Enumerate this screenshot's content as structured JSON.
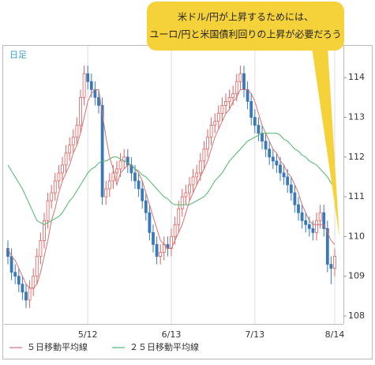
{
  "chart_data": {
    "type": "candlestick",
    "corner_label": "日足",
    "annotation": [
      "米ドル/円が上昇するためには、",
      "ユーロ/円と米国債利回りの上昇が必要だろう"
    ],
    "categories": [
      null,
      null,
      null,
      null,
      null,
      null,
      null,
      null,
      null,
      null,
      null,
      null,
      null,
      null,
      null,
      null,
      null,
      null,
      null,
      null,
      null,
      null,
      "5/12",
      null,
      null,
      null,
      null,
      null,
      null,
      null,
      null,
      null,
      null,
      null,
      null,
      null,
      null,
      null,
      null,
      null,
      null,
      null,
      null,
      null,
      null,
      "6/13",
      null,
      null,
      null,
      null,
      null,
      null,
      null,
      null,
      null,
      null,
      null,
      null,
      null,
      null,
      null,
      null,
      null,
      null,
      null,
      null,
      null,
      null,
      "7/13",
      null,
      null,
      null,
      null,
      null,
      null,
      null,
      null,
      null,
      null,
      null,
      null,
      null,
      null,
      null,
      null,
      null,
      null,
      null,
      null,
      null,
      "8/14"
    ],
    "open": [
      109.7,
      109.5,
      109.1,
      109.0,
      108.8,
      108.6,
      108.4,
      108.7,
      109.0,
      109.5,
      109.9,
      110.4,
      110.9,
      111.1,
      111.4,
      111.6,
      111.8,
      112.1,
      112.3,
      112.5,
      112.8,
      113.5,
      114.1,
      113.9,
      113.7,
      113.5,
      113.3,
      111.0,
      111.2,
      111.4,
      111.6,
      111.7,
      111.9,
      112.0,
      111.8,
      111.6,
      111.4,
      111.2,
      110.9,
      110.6,
      110.1,
      109.8,
      109.5,
      109.6,
      109.8,
      109.7,
      110.0,
      110.3,
      110.7,
      111.0,
      111.1,
      111.3,
      111.5,
      111.6,
      111.9,
      112.2,
      112.5,
      112.8,
      112.9,
      113.1,
      113.3,
      113.4,
      113.5,
      113.6,
      113.9,
      114.1,
      113.7,
      113.4,
      113.0,
      112.8,
      112.6,
      112.4,
      112.2,
      112.0,
      111.9,
      111.8,
      111.6,
      111.5,
      111.3,
      111.1,
      110.8,
      110.6,
      110.4,
      110.3,
      110.2,
      110.1,
      110.4,
      110.6,
      110.2,
      109.3,
      109.2
    ],
    "high": [
      109.9,
      109.7,
      109.3,
      109.2,
      109.0,
      108.8,
      108.9,
      109.2,
      109.7,
      110.1,
      110.6,
      111.1,
      111.3,
      111.6,
      111.8,
      112.0,
      112.3,
      112.5,
      112.7,
      113.0,
      113.7,
      114.3,
      114.3,
      114.1,
      113.9,
      113.7,
      113.5,
      111.4,
      111.6,
      111.8,
      111.9,
      112.1,
      112.2,
      112.2,
      112.0,
      111.8,
      111.6,
      111.4,
      111.1,
      110.8,
      110.3,
      110.0,
      109.8,
      110.0,
      110.0,
      110.2,
      110.5,
      110.9,
      111.2,
      111.3,
      111.5,
      111.7,
      111.8,
      112.1,
      112.4,
      112.7,
      113.0,
      113.1,
      113.3,
      113.5,
      113.6,
      113.7,
      113.8,
      114.1,
      114.3,
      114.3,
      113.9,
      113.6,
      113.2,
      113.0,
      112.8,
      112.6,
      112.4,
      112.2,
      112.1,
      112.0,
      111.8,
      111.7,
      111.5,
      111.3,
      111.0,
      110.8,
      110.6,
      110.5,
      110.4,
      110.6,
      110.8,
      110.8,
      110.4,
      109.5,
      109.7
    ],
    "low": [
      109.3,
      108.9,
      108.8,
      108.6,
      108.4,
      108.2,
      108.2,
      108.5,
      108.8,
      109.3,
      109.7,
      110.2,
      110.7,
      110.9,
      111.2,
      111.4,
      111.6,
      111.9,
      112.1,
      112.3,
      112.6,
      113.3,
      113.7,
      113.5,
      113.3,
      113.1,
      110.8,
      110.8,
      111.0,
      111.2,
      111.4,
      111.5,
      111.7,
      111.6,
      111.4,
      111.2,
      111.0,
      110.7,
      110.4,
      109.9,
      109.6,
      109.3,
      109.3,
      109.4,
      109.5,
      109.5,
      109.8,
      110.1,
      110.5,
      110.8,
      110.9,
      111.1,
      111.3,
      111.4,
      111.7,
      112.0,
      112.3,
      112.6,
      112.7,
      112.9,
      113.1,
      113.2,
      113.3,
      113.4,
      113.7,
      113.5,
      113.2,
      112.8,
      112.6,
      112.4,
      112.2,
      112.0,
      111.8,
      111.7,
      111.6,
      111.4,
      111.3,
      111.1,
      110.9,
      110.6,
      110.4,
      110.2,
      110.1,
      110.0,
      109.9,
      109.9,
      110.2,
      110.0,
      109.1,
      108.8,
      109.0
    ],
    "close": [
      109.5,
      109.1,
      109.0,
      108.8,
      108.6,
      108.4,
      108.7,
      109.0,
      109.5,
      109.9,
      110.4,
      110.9,
      111.1,
      111.4,
      111.6,
      111.8,
      112.1,
      112.3,
      112.5,
      112.8,
      113.5,
      114.1,
      113.9,
      113.7,
      113.5,
      113.3,
      111.0,
      111.2,
      111.4,
      111.6,
      111.7,
      111.9,
      112.0,
      111.8,
      111.6,
      111.4,
      111.2,
      110.9,
      110.6,
      110.1,
      109.8,
      109.5,
      109.6,
      109.8,
      109.7,
      110.0,
      110.3,
      110.7,
      111.0,
      111.1,
      111.3,
      111.5,
      111.6,
      111.9,
      112.2,
      112.5,
      112.8,
      112.9,
      113.1,
      113.3,
      113.4,
      113.5,
      113.6,
      113.9,
      114.1,
      113.7,
      113.4,
      113.0,
      112.8,
      112.6,
      112.4,
      112.2,
      112.0,
      111.9,
      111.8,
      111.6,
      111.5,
      111.3,
      111.1,
      110.8,
      110.6,
      110.4,
      110.3,
      110.2,
      110.1,
      110.4,
      110.6,
      110.2,
      109.3,
      109.2,
      109.5
    ],
    "up_color": "#e06060",
    "down_color": "#3a78b8",
    "series": [
      {
        "name": "５日移動平均線",
        "color": "#d87070",
        "values": [
          109.7,
          109.5,
          109.4,
          109.2,
          109.0,
          108.8,
          108.7,
          108.7,
          108.8,
          109.1,
          109.5,
          109.9,
          110.4,
          110.7,
          111.1,
          111.4,
          111.6,
          111.8,
          112.1,
          112.3,
          112.6,
          113.0,
          113.4,
          113.6,
          113.7,
          113.7,
          113.1,
          112.5,
          112.0,
          111.7,
          111.3,
          111.6,
          111.7,
          111.8,
          111.8,
          111.7,
          111.6,
          111.4,
          111.1,
          110.8,
          110.5,
          110.2,
          109.9,
          109.8,
          109.7,
          109.7,
          109.9,
          110.1,
          110.3,
          110.6,
          110.9,
          111.1,
          111.3,
          111.5,
          111.7,
          111.9,
          112.2,
          112.5,
          112.7,
          112.9,
          113.1,
          113.2,
          113.4,
          113.5,
          113.7,
          113.7,
          113.7,
          113.6,
          113.4,
          113.1,
          112.8,
          112.6,
          112.4,
          112.2,
          112.1,
          111.9,
          111.8,
          111.6,
          111.5,
          111.3,
          111.1,
          110.8,
          110.6,
          110.4,
          110.3,
          110.3,
          110.3,
          110.3,
          110.1,
          109.9,
          109.8
        ]
      },
      {
        "name": "２５日移動平均線",
        "color": "#4cb86a",
        "values": [
          111.8,
          111.65,
          111.5,
          111.35,
          111.2,
          111.0,
          110.8,
          110.6,
          110.4,
          110.35,
          110.3,
          110.35,
          110.4,
          110.45,
          110.5,
          110.6,
          110.75,
          110.9,
          111.0,
          111.15,
          111.3,
          111.45,
          111.6,
          111.7,
          111.75,
          111.85,
          111.9,
          111.9,
          111.95,
          112.0,
          112.0,
          111.95,
          111.9,
          111.85,
          111.8,
          111.7,
          111.65,
          111.55,
          111.5,
          111.4,
          111.3,
          111.2,
          111.1,
          111.0,
          110.95,
          110.85,
          110.8,
          110.8,
          110.8,
          110.8,
          110.8,
          110.85,
          110.9,
          110.95,
          111.0,
          111.1,
          111.25,
          111.4,
          111.5,
          111.6,
          111.75,
          111.9,
          112.0,
          112.1,
          112.2,
          112.3,
          112.4,
          112.45,
          112.5,
          112.55,
          112.6,
          112.6,
          112.6,
          112.6,
          112.6,
          112.55,
          112.45,
          112.4,
          112.3,
          112.2,
          112.15,
          112.05,
          112.0,
          111.9,
          111.85,
          111.8,
          111.7,
          111.6,
          111.5,
          111.35,
          111.2
        ]
      }
    ],
    "ylim": [
      107.8,
      114.8
    ],
    "yticks": [
      108,
      109,
      110,
      111,
      112,
      113,
      114
    ]
  }
}
